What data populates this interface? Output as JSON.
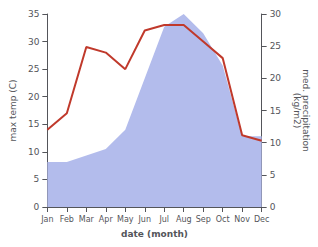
{
  "chart_data": {
    "type": "line",
    "xlabel": "date (month)",
    "ylabel": "max temp (C)",
    "y2label": "med. precipitation\n(kg/m2)",
    "categories": [
      "Jan",
      "Feb",
      "Mar",
      "Apr",
      "May",
      "Jun",
      "Jul",
      "Aug",
      "Sep",
      "Oct",
      "Nov",
      "Dec"
    ],
    "series": [
      {
        "type": "area",
        "axis": "y2",
        "color": "#b3bcec",
        "values": [
          7,
          7,
          8,
          9,
          12,
          20,
          28,
          30,
          27,
          22,
          11,
          11
        ]
      },
      {
        "type": "line",
        "color": "#c0392b",
        "values": [
          14,
          17,
          29,
          28,
          25,
          32,
          33,
          33,
          30,
          27,
          13,
          12
        ]
      }
    ],
    "ylim": [
      0,
      35
    ],
    "yticks": [
      0,
      5,
      10,
      15,
      20,
      25,
      30,
      35
    ],
    "y2lim": [
      0,
      30
    ],
    "y2ticks": [
      0,
      5,
      10,
      15,
      20,
      25,
      30
    ],
    "grid": false
  }
}
